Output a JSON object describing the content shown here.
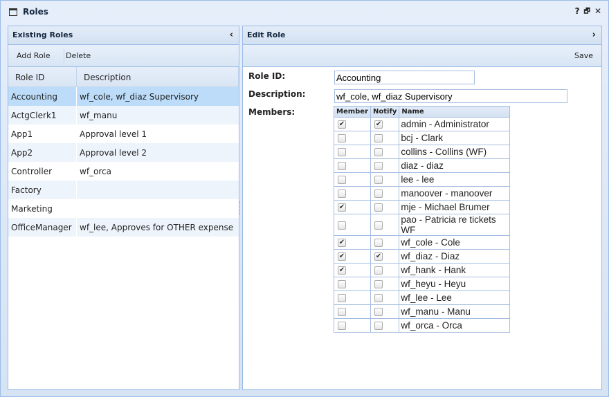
{
  "window": {
    "title": "Roles",
    "help": "?",
    "restore": "🗗",
    "close": "✕"
  },
  "left": {
    "title": "Existing Roles",
    "collapse": "‹",
    "toolbar": {
      "add": "Add Role",
      "delete": "Delete"
    },
    "columns": [
      "Role ID",
      "Description"
    ],
    "rows": [
      {
        "id": "Accounting",
        "desc": "wf_cole, wf_diaz Supervisory",
        "selected": true
      },
      {
        "id": "ActgClerk1",
        "desc": "wf_manu"
      },
      {
        "id": "App1",
        "desc": "Approval level 1"
      },
      {
        "id": "App2",
        "desc": "Approval level 2"
      },
      {
        "id": "Controller",
        "desc": "wf_orca"
      },
      {
        "id": "Factory",
        "desc": ""
      },
      {
        "id": "Marketing",
        "desc": ""
      },
      {
        "id": "OfficeManager",
        "desc": "wf_lee, Approves for OTHER expense"
      }
    ]
  },
  "right": {
    "title": "Edit Role",
    "expand": "›",
    "save": "Save",
    "labels": {
      "role_id": "Role ID:",
      "description": "Description:",
      "members": "Members:"
    },
    "role_id": "Accounting",
    "description": "wf_cole, wf_diaz Supervisory",
    "member_columns": [
      "Member",
      "Notify",
      "Name"
    ],
    "members": [
      {
        "name": "admin - Administrator",
        "member": true,
        "notify": true
      },
      {
        "name": "bcj - Clark",
        "member": false,
        "notify": false
      },
      {
        "name": "collins - Collins (WF)",
        "member": false,
        "notify": false
      },
      {
        "name": "diaz - diaz",
        "member": false,
        "notify": false
      },
      {
        "name": "lee - lee",
        "member": false,
        "notify": false
      },
      {
        "name": "manoover - manoover",
        "member": false,
        "notify": false
      },
      {
        "name": "mje - Michael Brumer",
        "member": true,
        "notify": false
      },
      {
        "name": "pao - Patricia re tickets WF",
        "member": false,
        "notify": false
      },
      {
        "name": "wf_cole - Cole",
        "member": true,
        "notify": false
      },
      {
        "name": "wf_diaz - Diaz",
        "member": true,
        "notify": true
      },
      {
        "name": "wf_hank - Hank",
        "member": true,
        "notify": false
      },
      {
        "name": "wf_heyu - Heyu",
        "member": false,
        "notify": false
      },
      {
        "name": "wf_lee - Lee",
        "member": false,
        "notify": false
      },
      {
        "name": "wf_manu - Manu",
        "member": false,
        "notify": false
      },
      {
        "name": "wf_orca - Orca",
        "member": false,
        "notify": false
      }
    ]
  }
}
